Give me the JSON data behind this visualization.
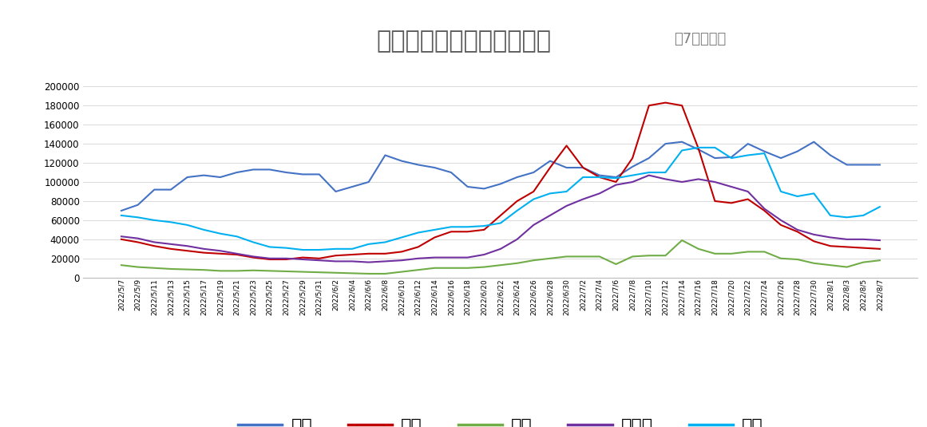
{
  "title_main": "欧美国家单日新增病例数量",
  "title_sub": "（7日均线）",
  "ylim": [
    0,
    210000
  ],
  "yticks": [
    0,
    20000,
    40000,
    60000,
    80000,
    100000,
    120000,
    140000,
    160000,
    180000,
    200000
  ],
  "dates": [
    "2022/5/7",
    "2022/5/9",
    "2022/5/11",
    "2022/5/13",
    "2022/5/15",
    "2022/5/17",
    "2022/5/19",
    "2022/5/21",
    "2022/5/23",
    "2022/5/25",
    "2022/5/27",
    "2022/5/29",
    "2022/5/31",
    "2022/6/2",
    "2022/6/4",
    "2022/6/6",
    "2022/6/8",
    "2022/6/10",
    "2022/6/12",
    "2022/6/14",
    "2022/6/16",
    "2022/6/18",
    "2022/6/20",
    "2022/6/22",
    "2022/6/24",
    "2022/6/26",
    "2022/6/28",
    "2022/6/30",
    "2022/7/2",
    "2022/7/4",
    "2022/7/6",
    "2022/7/8",
    "2022/7/10",
    "2022/7/12",
    "2022/7/14",
    "2022/7/16",
    "2022/7/18",
    "2022/7/20",
    "2022/7/22",
    "2022/7/24",
    "2022/7/26",
    "2022/7/28",
    "2022/7/30",
    "2022/8/1",
    "2022/8/3",
    "2022/8/5",
    "2022/8/7"
  ],
  "usa": [
    70000,
    76000,
    92000,
    92000,
    105000,
    107000,
    105000,
    110000,
    113000,
    113000,
    110000,
    108000,
    108000,
    90000,
    95000,
    100000,
    128000,
    122000,
    118000,
    115000,
    110000,
    95000,
    93000,
    98000,
    105000,
    110000,
    122000,
    115000,
    115000,
    107000,
    105000,
    116000,
    125000,
    140000,
    142000,
    134000,
    125000,
    126000,
    140000,
    132000,
    125000,
    132000,
    142000,
    128000,
    118000,
    118000,
    118000
  ],
  "france": [
    40000,
    37000,
    33000,
    30000,
    28000,
    26000,
    25000,
    24000,
    21000,
    19000,
    19000,
    21000,
    20000,
    23000,
    24000,
    25000,
    25000,
    27000,
    32000,
    42000,
    48000,
    48000,
    50000,
    65000,
    80000,
    90000,
    115000,
    138000,
    115000,
    105000,
    100000,
    125000,
    180000,
    183000,
    180000,
    135000,
    80000,
    78000,
    82000,
    70000,
    55000,
    48000,
    38000,
    33000,
    32000,
    31000,
    30000
  ],
  "uk": [
    13000,
    11000,
    10000,
    9000,
    8500,
    8000,
    7000,
    7000,
    7500,
    7000,
    6500,
    6000,
    5500,
    5000,
    4500,
    4000,
    4000,
    6000,
    8000,
    10000,
    10000,
    10000,
    11000,
    13000,
    15000,
    18000,
    20000,
    22000,
    22000,
    22000,
    14000,
    22000,
    23000,
    23000,
    39000,
    30000,
    25000,
    25000,
    27000,
    27000,
    20000,
    19000,
    15000,
    13000,
    11000,
    16000,
    18000
  ],
  "italy": [
    43000,
    41000,
    37000,
    35000,
    33000,
    30000,
    28000,
    25000,
    22000,
    20000,
    20000,
    19000,
    18000,
    17000,
    17000,
    16000,
    17000,
    18000,
    20000,
    21000,
    21000,
    21000,
    24000,
    30000,
    40000,
    55000,
    65000,
    75000,
    82000,
    88000,
    97000,
    100000,
    107000,
    103000,
    100000,
    103000,
    100000,
    95000,
    90000,
    72000,
    60000,
    50000,
    45000,
    42000,
    40000,
    40000,
    39000
  ],
  "germany": [
    65000,
    63000,
    60000,
    58000,
    55000,
    50000,
    46000,
    43000,
    37000,
    32000,
    31000,
    29000,
    29000,
    30000,
    30000,
    35000,
    37000,
    42000,
    47000,
    50000,
    53000,
    53000,
    54000,
    57000,
    70000,
    82000,
    88000,
    90000,
    105000,
    105000,
    104000,
    107000,
    110000,
    110000,
    133000,
    136000,
    136000,
    125000,
    128000,
    130000,
    90000,
    85000,
    88000,
    65000,
    63000,
    65000,
    74000
  ],
  "colors": {
    "usa": "#4472C4",
    "france": "#C00000",
    "uk": "#70AD47",
    "italy": "#7030A0",
    "germany": "#00B0F0"
  },
  "legend": [
    "美国",
    "法国",
    "英国",
    "意大利",
    "德国"
  ],
  "title_main_color": "#595959",
  "title_sub_color": "#7F7F7F",
  "background_color": "#FFFFFF",
  "grid_color": "#D9D9D9",
  "ytick_color": "#4472C4"
}
